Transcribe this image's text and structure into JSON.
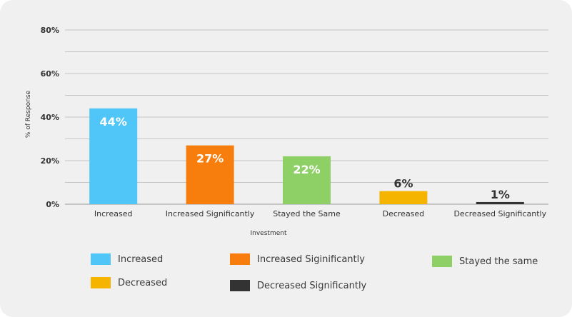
{
  "chart_data": {
    "type": "bar",
    "categories": [
      "Increased",
      "Increased Significantly",
      "Stayed the Same",
      "Decreased",
      "Decreased Significantly"
    ],
    "values": [
      44,
      27,
      22,
      6,
      1
    ],
    "value_labels": [
      "44%",
      "27%",
      "22%",
      "6%",
      "1%"
    ],
    "colors": [
      "#4fc6f7",
      "#f77d0c",
      "#8fd066",
      "#f5b400",
      "#333333"
    ],
    "label_colors": [
      "#ffffff",
      "#ffffff",
      "#ffffff",
      "#333333",
      "#333333"
    ],
    "ylabel": "% of Response",
    "xlabel": "Investment",
    "ylim": [
      0,
      80
    ],
    "yticks": [
      0,
      20,
      40,
      60,
      80
    ],
    "ytick_labels": [
      "0%",
      "20%",
      "40%",
      "60%",
      "80%"
    ],
    "grid": true,
    "legend": [
      {
        "label": "Increased",
        "color": "#4fc6f7"
      },
      {
        "label": "Increased Siginificantly",
        "color": "#f77d0c"
      },
      {
        "label": "Stayed the same",
        "color": "#8fd066"
      },
      {
        "label": "Decreased",
        "color": "#f5b400"
      },
      {
        "label": "Decreased Significantly",
        "color": "#333333"
      }
    ]
  }
}
